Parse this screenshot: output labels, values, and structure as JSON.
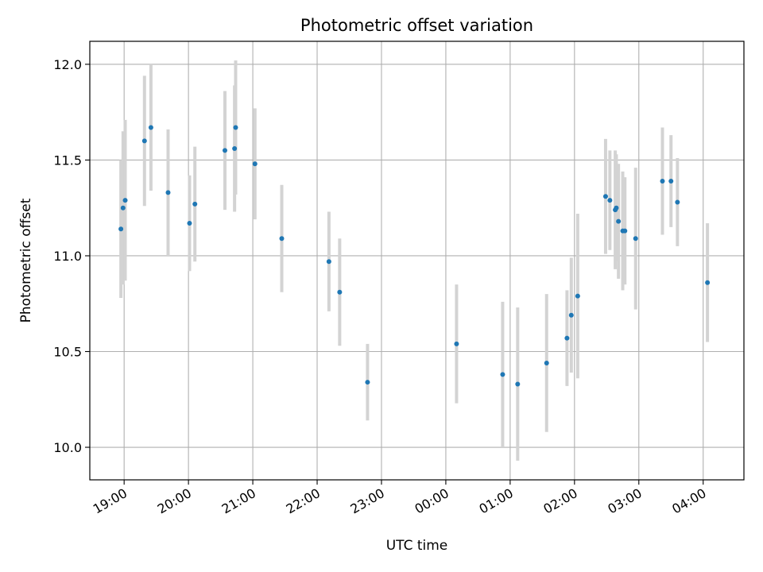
{
  "chart_data": {
    "type": "scatter",
    "title": "Photometric offset variation",
    "xlabel": "UTC time",
    "ylabel": "Photometric offset",
    "x_ticks": [
      "19:00",
      "20:00",
      "21:00",
      "22:00",
      "23:00",
      "00:00",
      "01:00",
      "02:00",
      "03:00",
      "04:00"
    ],
    "y_ticks": [
      "10.0",
      "10.5",
      "11.0",
      "11.5",
      "12.0"
    ],
    "xlim": [
      "18:28",
      "04:38"
    ],
    "ylim": [
      9.83,
      12.12
    ],
    "grid": true,
    "colors": {
      "point": "#1f77b4",
      "errorbar": "#d3d3d3",
      "grid": "#b0b0b0"
    },
    "points": [
      {
        "x": "18:57",
        "y": 11.14,
        "err": 0.36
      },
      {
        "x": "18:59",
        "y": 11.25,
        "err": 0.4
      },
      {
        "x": "19:01",
        "y": 11.29,
        "err": 0.42
      },
      {
        "x": "19:19",
        "y": 11.6,
        "err": 0.34
      },
      {
        "x": "19:25",
        "y": 11.67,
        "err": 0.33
      },
      {
        "x": "19:41",
        "y": 11.33,
        "err": 0.33
      },
      {
        "x": "20:01",
        "y": 11.17,
        "err": 0.25
      },
      {
        "x": "20:06",
        "y": 11.27,
        "err": 0.3
      },
      {
        "x": "20:34",
        "y": 11.55,
        "err": 0.31
      },
      {
        "x": "20:43",
        "y": 11.56,
        "err": 0.33
      },
      {
        "x": "20:44",
        "y": 11.67,
        "err": 0.35
      },
      {
        "x": "21:02",
        "y": 11.48,
        "err": 0.29
      },
      {
        "x": "21:27",
        "y": 11.09,
        "err": 0.28
      },
      {
        "x": "22:11",
        "y": 10.97,
        "err": 0.26
      },
      {
        "x": "22:21",
        "y": 10.81,
        "err": 0.28
      },
      {
        "x": "22:47",
        "y": 10.34,
        "err": 0.2
      },
      {
        "x": "00:10",
        "y": 10.54,
        "err": 0.31
      },
      {
        "x": "00:53",
        "y": 10.38,
        "err": 0.38
      },
      {
        "x": "01:07",
        "y": 10.33,
        "err": 0.4
      },
      {
        "x": "01:34",
        "y": 10.44,
        "err": 0.36
      },
      {
        "x": "01:53",
        "y": 10.57,
        "err": 0.25
      },
      {
        "x": "01:57",
        "y": 10.69,
        "err": 0.3
      },
      {
        "x": "02:03",
        "y": 10.79,
        "err": 0.43
      },
      {
        "x": "02:29",
        "y": 11.31,
        "err": 0.3
      },
      {
        "x": "02:33",
        "y": 11.29,
        "err": 0.26
      },
      {
        "x": "02:38",
        "y": 11.24,
        "err": 0.31
      },
      {
        "x": "02:39",
        "y": 11.25,
        "err": 0.28
      },
      {
        "x": "02:41",
        "y": 11.18,
        "err": 0.3
      },
      {
        "x": "02:45",
        "y": 11.13,
        "err": 0.31
      },
      {
        "x": "02:47",
        "y": 11.13,
        "err": 0.28
      },
      {
        "x": "02:57",
        "y": 11.09,
        "err": 0.37
      },
      {
        "x": "03:22",
        "y": 11.39,
        "err": 0.28
      },
      {
        "x": "03:30",
        "y": 11.39,
        "err": 0.24
      },
      {
        "x": "03:36",
        "y": 11.28,
        "err": 0.23
      },
      {
        "x": "04:04",
        "y": 10.86,
        "err": 0.31
      }
    ]
  }
}
